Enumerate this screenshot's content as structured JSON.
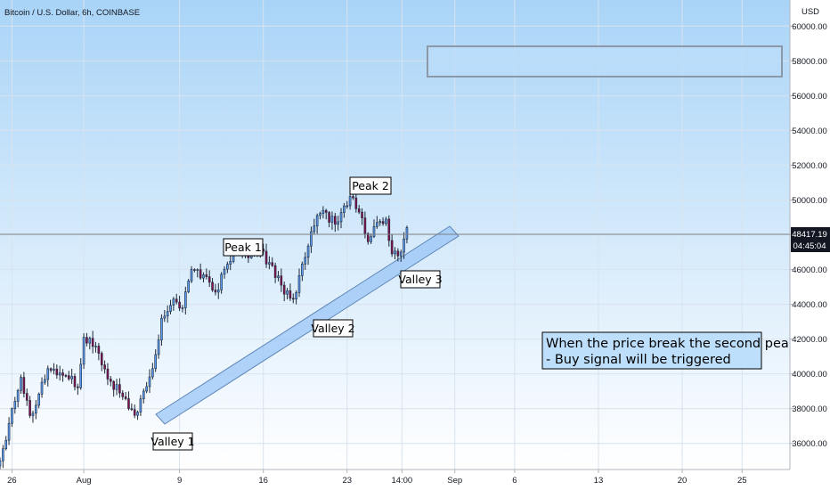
{
  "header": {
    "title": "Bitcoin / U.S. Dollar, 6h, COINBASE",
    "currency": "USD"
  },
  "current": {
    "price": "48417.19",
    "countdown": "04:45:04"
  },
  "chart_data": {
    "type": "candlestick",
    "title": "Bitcoin / U.S. Dollar, 6h, COINBASE",
    "ylabel": "USD",
    "ylim": [
      34500,
      61500
    ],
    "yticks": [
      36000,
      38000,
      40000,
      42000,
      44000,
      46000,
      48000,
      50000,
      52000,
      54000,
      56000,
      58000,
      60000
    ],
    "ytick_labels": [
      "36000.00",
      "38000.00",
      "40000.00",
      "42000.00",
      "44000.00",
      "46000.00",
      "48000.00",
      "50000.00",
      "52000.00",
      "54000.00",
      "56000.00",
      "58000.00",
      "60000.00"
    ],
    "xlim": [
      "2021-07-25",
      "2021-09-29"
    ],
    "xticks": [
      {
        "date": "2021-07-26",
        "label": "26"
      },
      {
        "date": "2021-08-01",
        "label": "Aug"
      },
      {
        "date": "2021-08-09",
        "label": "9"
      },
      {
        "date": "2021-08-16",
        "label": "16"
      },
      {
        "date": "2021-08-23",
        "label": "23"
      },
      {
        "date": "2021-08-27T14:00",
        "label": "14:00"
      },
      {
        "date": "2021-09-01",
        "label": "Sep"
      },
      {
        "date": "2021-09-06",
        "label": "6"
      },
      {
        "date": "2021-09-13",
        "label": "13"
      },
      {
        "date": "2021-09-20",
        "label": "20"
      },
      {
        "date": "2021-09-25",
        "label": "25"
      }
    ],
    "grid": true,
    "colors": {
      "up": "#5b9cf6",
      "down": "#880e4f",
      "wick": "#1e2a3a"
    },
    "anchors": [
      {
        "date": "2021-07-25T00:00",
        "close": 35000
      },
      {
        "date": "2021-07-26T00:00",
        "close": 38000
      },
      {
        "date": "2021-07-26T18:00",
        "close": 39800
      },
      {
        "date": "2021-07-27T12:00",
        "close": 37600
      },
      {
        "date": "2021-07-29T00:00",
        "close": 40300
      },
      {
        "date": "2021-07-30T12:00",
        "close": 39900
      },
      {
        "date": "2021-07-31T12:00",
        "close": 39200
      },
      {
        "date": "2021-08-01T00:00",
        "close": 42100
      },
      {
        "date": "2021-08-02T00:00",
        "close": 41600
      },
      {
        "date": "2021-08-03T00:00",
        "close": 39700
      },
      {
        "date": "2021-08-04T00:00",
        "close": 38900
      },
      {
        "date": "2021-08-04T18:00",
        "close": 38000
      },
      {
        "date": "2021-08-05T12:00",
        "close": 37800
      },
      {
        "date": "2021-08-06T18:00",
        "close": 40300
      },
      {
        "date": "2021-08-07T12:00",
        "close": 43200
      },
      {
        "date": "2021-08-08T12:00",
        "close": 44300
      },
      {
        "date": "2021-08-09T06:00",
        "close": 43800
      },
      {
        "date": "2021-08-10T00:00",
        "close": 46000
      },
      {
        "date": "2021-08-11T00:00",
        "close": 45700
      },
      {
        "date": "2021-08-12T00:00",
        "close": 44700
      },
      {
        "date": "2021-08-13T00:00",
        "close": 46300
      },
      {
        "date": "2021-08-13T18:00",
        "close": 47600
      },
      {
        "date": "2021-08-14T12:00",
        "close": 46900
      },
      {
        "date": "2021-08-15T12:00",
        "close": 47100
      },
      {
        "date": "2021-08-16T12:00",
        "close": 46400
      },
      {
        "date": "2021-08-17T12:00",
        "close": 45100
      },
      {
        "date": "2021-08-18T12:00",
        "close": 44300
      },
      {
        "date": "2021-08-19T12:00",
        "close": 46700
      },
      {
        "date": "2021-08-20T06:00",
        "close": 48500
      },
      {
        "date": "2021-08-21T00:00",
        "close": 49400
      },
      {
        "date": "2021-08-22T00:00",
        "close": 48600
      },
      {
        "date": "2021-08-23T06:00",
        "close": 50200
      },
      {
        "date": "2021-08-24T00:00",
        "close": 49300
      },
      {
        "date": "2021-08-24T18:00",
        "close": 47600
      },
      {
        "date": "2021-08-25T12:00",
        "close": 48700
      },
      {
        "date": "2021-08-26T06:00",
        "close": 48900
      },
      {
        "date": "2021-08-26T18:00",
        "close": 46900
      },
      {
        "date": "2021-08-27T12:00",
        "close": 47000
      },
      {
        "date": "2021-08-28T00:00",
        "close": 48417
      }
    ]
  },
  "annotations": {
    "peak1": "Peak 1",
    "peak2": "Peak 2",
    "valley1": "Valley 1",
    "valley2": "Valley 2",
    "valley3": "Valley 3",
    "note_line1": "When the price break the second peak",
    "note_line2": "- Buy signal will be triggered"
  }
}
